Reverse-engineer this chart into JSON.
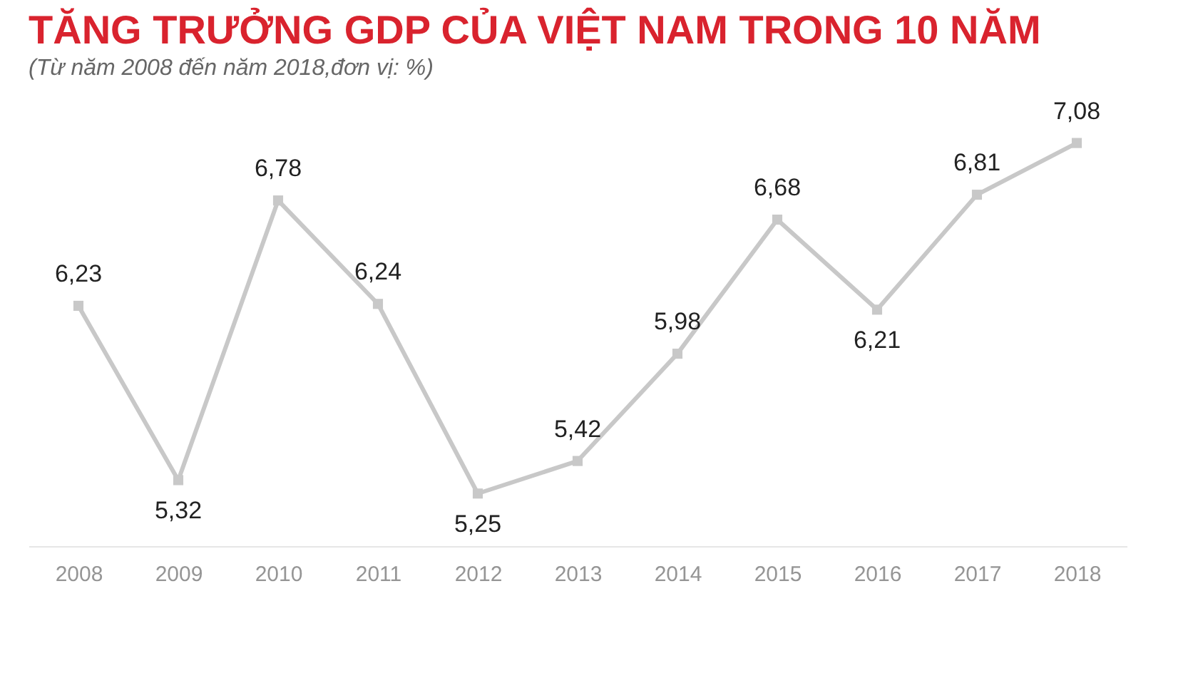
{
  "chart_data": {
    "type": "line",
    "title": "TĂNG TRƯỞNG GDP CỦA VIỆT NAM TRONG 10 NĂM",
    "subtitle": "(Từ năm 2008 đến năm 2018,đơn vị: %)",
    "categories": [
      "2008",
      "2009",
      "2010",
      "2011",
      "2012",
      "2013",
      "2014",
      "2015",
      "2016",
      "2017",
      "2018"
    ],
    "series": [
      {
        "color": "#c8c8c8",
        "values": [
          6.23,
          5.32,
          6.78,
          6.24,
          5.25,
          5.42,
          5.98,
          6.68,
          6.21,
          6.81,
          7.08
        ],
        "value_labels": [
          "6,23",
          "5,32",
          "6,78",
          "6,24",
          "5,25",
          "5,42",
          "5,98",
          "6,68",
          "6,21",
          "6,81",
          "7,08"
        ]
      }
    ],
    "tick_labels": "x",
    "marker": "square",
    "line_style": "solid",
    "grid": false
  }
}
